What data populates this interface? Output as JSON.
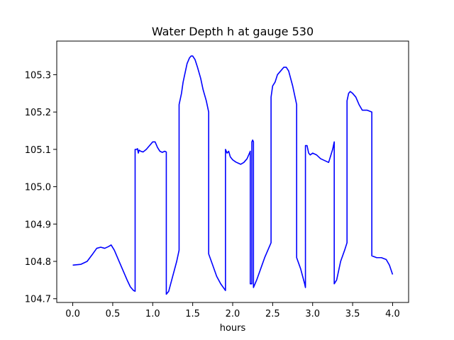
{
  "chart_data": {
    "type": "line",
    "title": "Water Depth h at gauge 530",
    "xlabel": "hours",
    "ylabel": "",
    "xlim": [
      -0.2,
      4.2
    ],
    "ylim": [
      104.69,
      105.39
    ],
    "xticks": [
      0.0,
      0.5,
      1.0,
      1.5,
      2.0,
      2.5,
      3.0,
      3.5,
      4.0
    ],
    "xtick_labels": [
      "0.0",
      "0.5",
      "1.0",
      "1.5",
      "2.0",
      "2.5",
      "3.0",
      "3.5",
      "4.0"
    ],
    "yticks": [
      104.7,
      104.8,
      104.9,
      105.0,
      105.1,
      105.2,
      105.3
    ],
    "ytick_labels": [
      "104.7",
      "104.8",
      "104.9",
      "105.0",
      "105.1",
      "105.2",
      "105.3"
    ],
    "grid": false,
    "line_color": "#0000ff",
    "series": [
      {
        "x": [
          0.0,
          0.1,
          0.18,
          0.25,
          0.3,
          0.35,
          0.4,
          0.45,
          0.48,
          0.52,
          0.58,
          0.62,
          0.68,
          0.72,
          0.76,
          0.78,
          0.78,
          0.8,
          0.81,
          0.82,
          0.83,
          0.85,
          0.88,
          0.92,
          0.96,
          1.0,
          1.03,
          1.06,
          1.09,
          1.12,
          1.15,
          1.17,
          1.17,
          1.2,
          1.25,
          1.3,
          1.33,
          1.33,
          1.36,
          1.38,
          1.4,
          1.43,
          1.46,
          1.48,
          1.5,
          1.53,
          1.56,
          1.6,
          1.63,
          1.67,
          1.7,
          1.7,
          1.75,
          1.8,
          1.85,
          1.9,
          1.91,
          1.91,
          1.93,
          1.95,
          1.97,
          2.0,
          2.04,
          2.08,
          2.1,
          2.14,
          2.18,
          2.2,
          2.22,
          2.22,
          2.24,
          2.24,
          2.25,
          2.26,
          2.26,
          2.3,
          2.35,
          2.4,
          2.44,
          2.48,
          2.48,
          2.5,
          2.53,
          2.56,
          2.6,
          2.64,
          2.67,
          2.7,
          2.75,
          2.8,
          2.8,
          2.85,
          2.9,
          2.91,
          2.91,
          2.93,
          2.95,
          2.97,
          3.0,
          3.05,
          3.1,
          3.15,
          3.2,
          3.25,
          3.27,
          3.27,
          3.3,
          3.35,
          3.4,
          3.43,
          3.43,
          3.45,
          3.47,
          3.5,
          3.54,
          3.58,
          3.62,
          3.68,
          3.74,
          3.74,
          3.8,
          3.86,
          3.92,
          3.96,
          4.0
        ],
        "y": [
          104.79,
          104.792,
          104.8,
          104.82,
          104.835,
          104.838,
          104.835,
          104.84,
          104.844,
          104.83,
          104.8,
          104.78,
          104.75,
          104.732,
          104.722,
          104.72,
          105.1,
          105.1,
          105.102,
          105.09,
          105.098,
          105.095,
          105.093,
          105.1,
          105.11,
          105.12,
          105.12,
          105.105,
          105.095,
          105.092,
          105.095,
          105.093,
          104.712,
          104.72,
          104.76,
          104.8,
          104.83,
          105.22,
          105.25,
          105.28,
          105.3,
          105.33,
          105.345,
          105.35,
          105.35,
          105.34,
          105.32,
          105.29,
          105.26,
          105.23,
          105.2,
          104.82,
          104.79,
          104.76,
          104.74,
          104.725,
          104.722,
          105.1,
          105.09,
          105.095,
          105.08,
          105.072,
          105.066,
          105.062,
          105.06,
          105.065,
          105.075,
          105.085,
          105.095,
          104.74,
          104.74,
          105.12,
          105.125,
          105.12,
          104.73,
          104.75,
          104.78,
          104.81,
          104.83,
          104.85,
          105.24,
          105.27,
          105.28,
          105.3,
          105.31,
          105.32,
          105.32,
          105.31,
          105.27,
          105.22,
          104.81,
          104.78,
          104.74,
          104.73,
          105.11,
          105.11,
          105.09,
          105.085,
          105.09,
          105.085,
          105.075,
          105.07,
          105.065,
          105.1,
          105.12,
          104.74,
          104.75,
          104.8,
          104.83,
          104.85,
          105.23,
          105.25,
          105.255,
          105.25,
          105.24,
          105.22,
          105.205,
          105.205,
          105.2,
          104.815,
          104.81,
          104.81,
          104.805,
          104.79,
          104.765
        ]
      }
    ]
  }
}
